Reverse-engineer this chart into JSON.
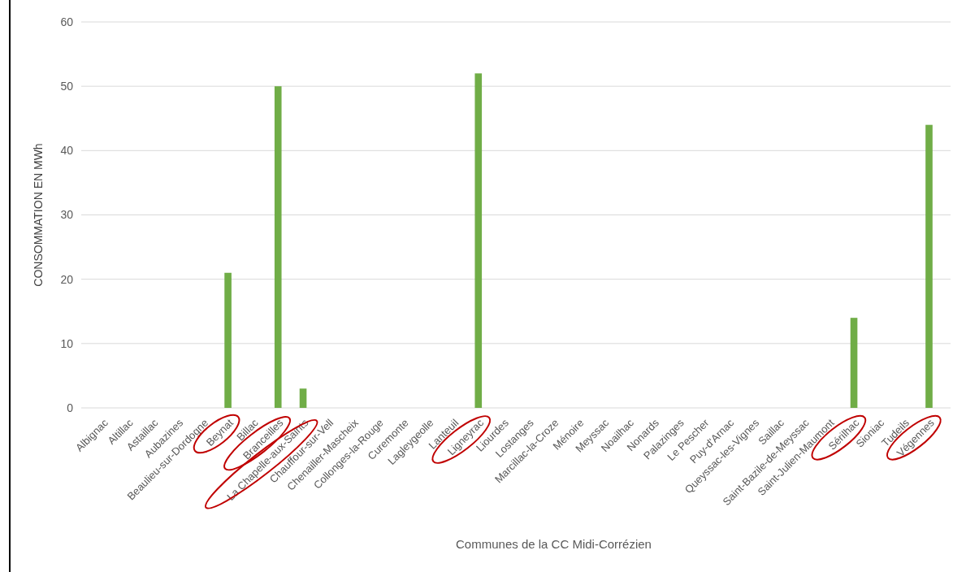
{
  "chart_data": {
    "type": "bar",
    "xlabel": "Communes de la CC Midi-Corrézien",
    "ylabel": "CONSOMMATION EN MWh",
    "categories": [
      "Albignac",
      "Altillac",
      "Astaillac",
      "Aubazines",
      "Beaulieu-sur-Dordogne",
      "Beynat",
      "Billac",
      "Branceilles",
      "La Chapelle-aux-Saints",
      "Chauffour-sur-Vell",
      "Chenailler-Mascheix",
      "Collonges-la-Rouge",
      "Curemonte",
      "Lagleygeolle",
      "Lanteuil",
      "Ligneyrac",
      "Liourdes",
      "Lostanges",
      "Marcillac-la-Croze",
      "Ménoire",
      "Meyssac",
      "Noailhac",
      "Nonards",
      "Palazinges",
      "Le Pescher",
      "Puy-d'Arnac",
      "Queyssac-les-Vignes",
      "Saillac",
      "Saint-Bazile-de-Meyssac",
      "Saint-Julien-Maumont",
      "Sérilhac",
      "Sioniac",
      "Tudeils",
      "Végennes"
    ],
    "values": [
      0,
      0,
      0,
      0,
      0,
      21,
      0,
      50,
      3,
      0,
      0,
      0,
      0,
      0,
      0,
      52,
      0,
      0,
      0,
      0,
      0,
      0,
      0,
      0,
      0,
      0,
      0,
      0,
      0,
      0,
      14,
      0,
      0,
      44
    ],
    "color": "#70ad47",
    "ylim": [
      0,
      60
    ],
    "yticks": [
      0,
      10,
      20,
      30,
      40,
      50,
      60
    ],
    "grid": "y"
  }
}
